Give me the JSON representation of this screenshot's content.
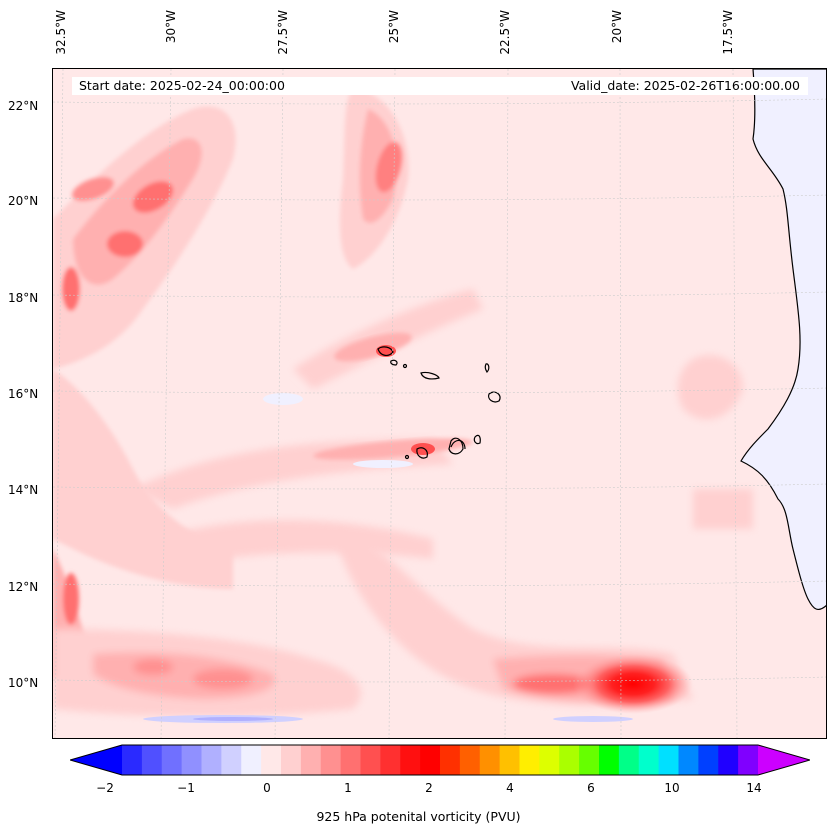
{
  "map": {
    "lon_labels": [
      "32.5°W",
      "30°W",
      "27.5°W",
      "25°W",
      "22.5°W",
      "20°W",
      "17.5°W"
    ],
    "lat_labels": [
      "22°N",
      "20°N",
      "18°N",
      "16°N",
      "14°N",
      "12°N",
      "10°N"
    ],
    "start_date": "Start date: 2025-02-24_00:00:00",
    "valid_date": "Valid_date: 2025-02-26T16:00:00.00"
  },
  "colorbar": {
    "tick_labels": [
      "−2",
      "−1",
      "0",
      "1",
      "2",
      "4",
      "6",
      "10",
      "14"
    ],
    "label": "925 hPa potenital vorticity (PVU)",
    "colors": [
      "#0000ff",
      "#2a2aff",
      "#5050ff",
      "#7070ff",
      "#9090ff",
      "#b0b0ff",
      "#d0d0ff",
      "#f0f0ff",
      "#ffe8e8",
      "#ffd0d0",
      "#ffb0b0",
      "#ff9090",
      "#ff7070",
      "#ff5050",
      "#ff3030",
      "#ff1010",
      "#ff0000",
      "#ff3000",
      "#ff6000",
      "#ff9000",
      "#ffc000",
      "#ffee00",
      "#ddff00",
      "#aaff00",
      "#66ff00",
      "#00ff00",
      "#00ff88",
      "#00ffcc",
      "#00e0ff",
      "#0088ff",
      "#0040ff",
      "#2000ff",
      "#8000ff",
      "#cc00ff"
    ]
  },
  "colors": {
    "land": "#f0f0ff",
    "background_low": "#ffe8e8"
  }
}
